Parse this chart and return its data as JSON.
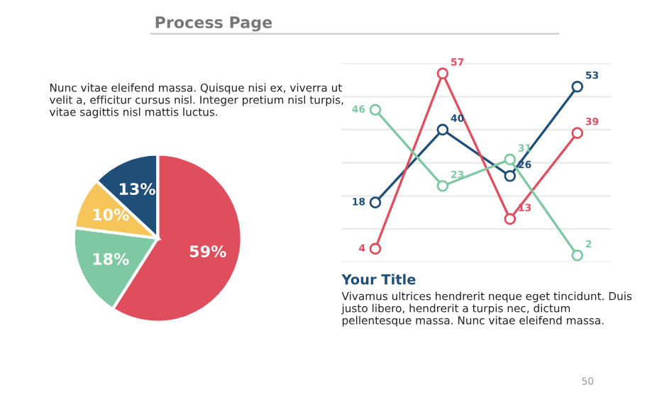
{
  "chart_data": [
    {
      "type": "pie",
      "title": "Process Page",
      "categories": [
        null,
        null,
        null,
        null
      ],
      "values": [
        59,
        18,
        10,
        13
      ],
      "colors": [
        "#e04e5e",
        "#7ec8a4",
        "#f5c55a",
        "#1f4e79"
      ],
      "value_labels": [
        "59%",
        "18%",
        "10%",
        "13%"
      ],
      "annotations": [
        "Nunc vitae eleifend massa. Quisque nisi ex, viverra ut velit a, efficitur cursus nisl. Integer pretium nisl turpis, vitae sagittis nisl mattis luctus."
      ]
    },
    {
      "type": "line",
      "categories": [
        null,
        null,
        null,
        null
      ],
      "series": [
        {
          "color": "#1f4e79",
          "values": [
            18,
            40,
            26,
            53
          ]
        },
        {
          "color": "#e04e5e",
          "values": [
            4,
            57,
            13,
            39
          ]
        },
        {
          "color": "#7ec8a4",
          "values": [
            46,
            23,
            31,
            2
          ]
        }
      ],
      "data_labels": true,
      "marker": "circle",
      "grid": "y",
      "ylim": [
        0,
        60
      ],
      "yticks": [
        {
          "value": 0,
          "label": null
        },
        {
          "value": 10,
          "label": null
        },
        {
          "value": 20,
          "label": null
        },
        {
          "value": 30,
          "label": null
        },
        {
          "value": 40,
          "label": null
        },
        {
          "value": 50,
          "label": null
        },
        {
          "value": 60,
          "label": null
        }
      ],
      "annotations": [
        "Your Title",
        "Vivamus ultrices hendrerit neque eget tincidunt. Duis justo libero, hendrerit a turpis nec, dictum pellentesque massa. Nunc vitae eleifend massa.",
        "50"
      ]
    }
  ]
}
